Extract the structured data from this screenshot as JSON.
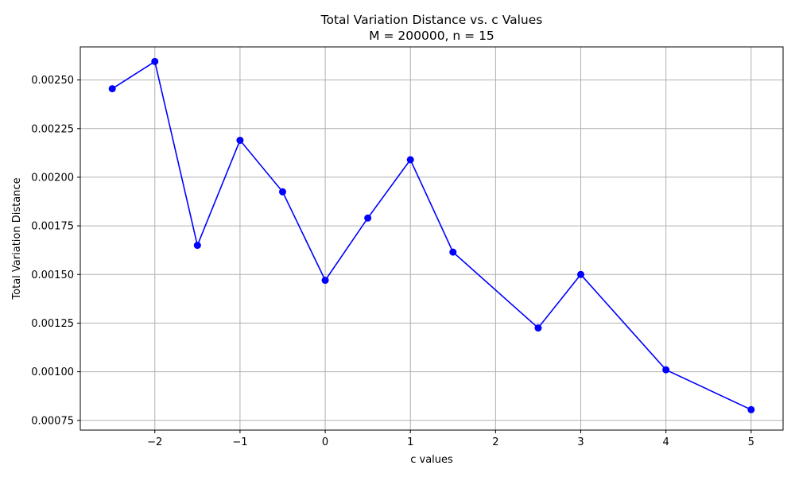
{
  "chart_data": {
    "type": "line",
    "title": "Total Variation Distance vs. c Values",
    "subtitle": "M = 200000, n = 15",
    "xlabel": "c values",
    "ylabel": "Total Variation Distance",
    "xlim": [
      -2.875,
      5.375
    ],
    "ylim": [
      0.0007,
      0.00267
    ],
    "xticks": [
      -2,
      -1,
      0,
      1,
      2,
      3,
      4,
      5
    ],
    "xtick_labels": [
      "−2",
      "−1",
      "0",
      "1",
      "2",
      "3",
      "4",
      "5"
    ],
    "yticks": [
      0.00075,
      0.001,
      0.00125,
      0.0015,
      0.00175,
      0.002,
      0.00225,
      0.0025
    ],
    "ytick_labels": [
      "0.00075",
      "0.00100",
      "0.00125",
      "0.00150",
      "0.00175",
      "0.00200",
      "0.00225",
      "0.00250"
    ],
    "grid": true,
    "series": [
      {
        "color": "#0000ff",
        "marker": "circle",
        "x": [
          -2.5,
          -2,
          -1.5,
          -1,
          -0.5,
          0,
          0.5,
          1,
          1.5,
          2.5,
          3,
          4,
          5
        ],
        "y": [
          0.002455,
          0.002595,
          0.00165,
          0.00219,
          0.001925,
          0.00147,
          0.00179,
          0.00209,
          0.001615,
          0.001225,
          0.0015,
          0.00101,
          0.000805
        ]
      }
    ]
  }
}
